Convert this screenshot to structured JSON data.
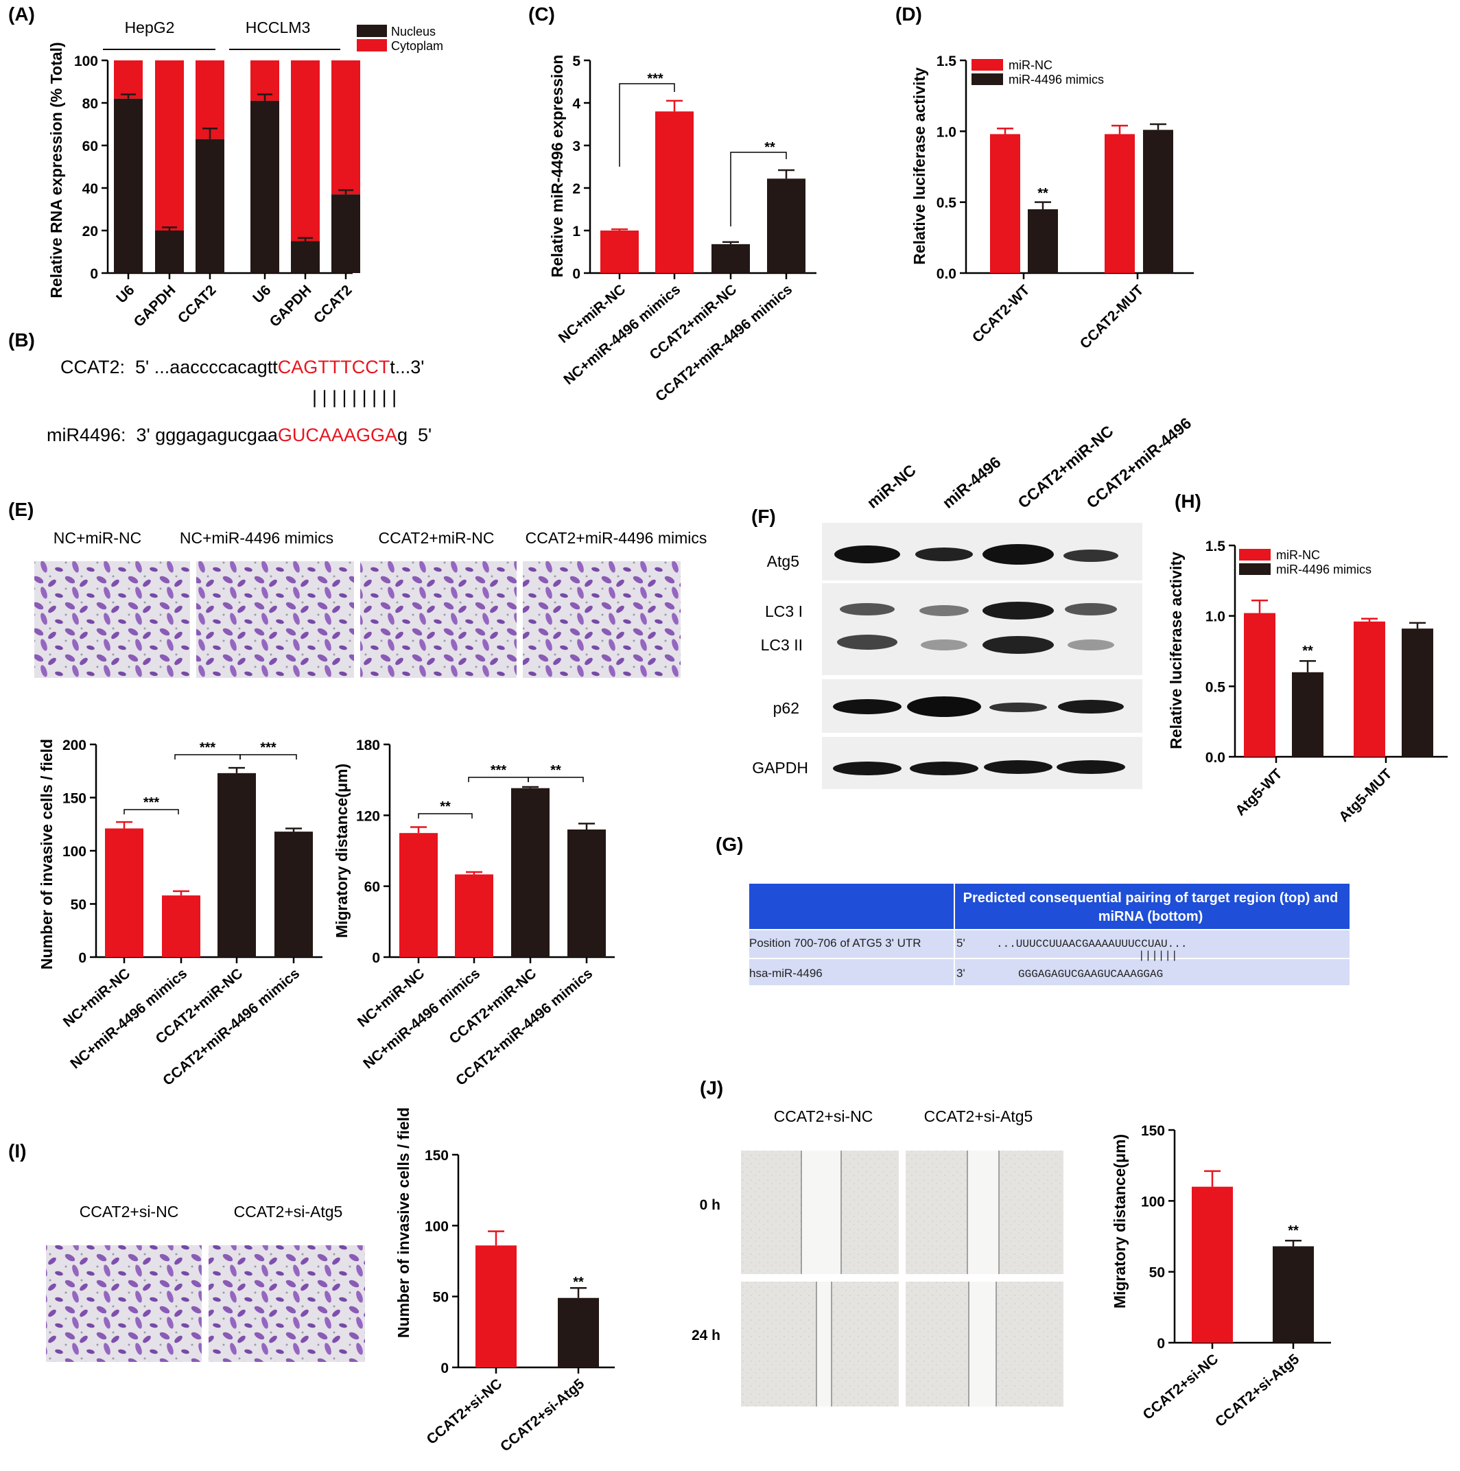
{
  "panels": {
    "A": {
      "label": "(A)",
      "groups": [
        "HepG2",
        "HCCLM3"
      ],
      "ylabel": "Relative RNA expression (% Total)",
      "legend": [
        "Nucleus",
        "Cytoplam"
      ],
      "yticks": [
        "0",
        "20",
        "40",
        "60",
        "80",
        "100"
      ],
      "xticks": [
        "U6",
        "GAPDH",
        "CCAT2",
        "U6",
        "GAPDH",
        "CCAT2"
      ]
    },
    "B": {
      "label": "(B)",
      "line1_prefix": "CCAT2:  5' ...aaccccacagtt",
      "line1_match": "CAGTTTCCT",
      "line1_suffix": "t...3'",
      "pairing": "| | | | | | | | |",
      "line2_prefix": "miR4496:  3' gggagagucgaa",
      "line2_match": "GUCAAAGGA",
      "line2_suffix": "g  5'"
    },
    "C": {
      "label": "(C)",
      "ylabel": "Relative miR-4496  expression",
      "yticks": [
        "0",
        "1",
        "2",
        "3",
        "4",
        "5"
      ],
      "xticks": [
        "NC+miR-NC",
        "NC+miR-4496 mimics",
        "CCAT2+miR-NC",
        "CCAT2+miR-4496 mimics"
      ],
      "sig": [
        "***",
        "**"
      ]
    },
    "D": {
      "label": "(D)",
      "ylabel": "Relative luciferase activity",
      "yticks": [
        "0.0",
        "0.5",
        "1.0",
        "1.5"
      ],
      "legend": [
        "miR-NC",
        "miR-4496 mimics"
      ],
      "xticks": [
        "CCAT2-WT",
        "CCAT2-MUT"
      ],
      "sig": [
        "**"
      ]
    },
    "E": {
      "label": "(E)",
      "image_titles": [
        "NC+miR-NC",
        "NC+miR-4496 mimics",
        "CCAT2+miR-NC",
        "CCAT2+miR-4496 mimics"
      ],
      "chart1_ylabel": "Number of invasive cells / field",
      "chart1_yticks": [
        "0",
        "50",
        "100",
        "150",
        "200"
      ],
      "chart2_ylabel": "Migratory distance(μm)",
      "chart2_yticks": [
        "0",
        "60",
        "120",
        "180"
      ],
      "xticks": [
        "NC+miR-NC",
        "NC+miR-4496 mimics",
        "CCAT2+miR-NC",
        "CCAT2+miR-4496 mimics"
      ],
      "sig1": [
        "***",
        "***",
        "***"
      ],
      "sig2": [
        "**",
        "***",
        "**"
      ]
    },
    "F": {
      "label": "(F)",
      "lanes": [
        "miR-NC",
        "miR-4496",
        "CCAT2+miR-NC",
        "CCAT2+miR-4496"
      ],
      "proteins": [
        "Atg5",
        "LC3 I",
        "LC3 II",
        "p62",
        "GAPDH"
      ]
    },
    "G": {
      "label": "(G)",
      "header": "Predicted consequential pairing of target region (top) and miRNA (bottom)",
      "row1_name": "Position 700-706 of ATG5 3' UTR",
      "row1_end": "5'",
      "row1_seq": "...UUUCCUUAACGAAAAUUUCCUAU...",
      "pairs": "||||||",
      "row2_name": "hsa-miR-4496",
      "row2_end": "3'",
      "row2_seq": "GGGAGAGUCGAAGUCAAAGGAG"
    },
    "H": {
      "label": "(H)",
      "ylabel": "Relative luciferase activity",
      "yticks": [
        "0.0",
        "0.5",
        "1.0",
        "1.5"
      ],
      "legend": [
        "miR-NC",
        "miR-4496 mimics"
      ],
      "xticks": [
        "Atg5-WT",
        "Atg5-MUT"
      ],
      "sig": [
        "**"
      ]
    },
    "I": {
      "label": "(I)",
      "image_titles": [
        "CCAT2+si-NC",
        "CCAT2+si-Atg5"
      ],
      "ylabel": "Number of invasive cells / field",
      "yticks": [
        "0",
        "50",
        "100",
        "150"
      ],
      "xticks": [
        "CCAT2+si-NC",
        "CCAT2+si-Atg5"
      ],
      "sig": [
        "**"
      ]
    },
    "J": {
      "label": "(J)",
      "image_titles": [
        "CCAT2+si-NC",
        "CCAT2+si-Atg5"
      ],
      "row_labels": [
        "0 h",
        "24 h"
      ],
      "ylabel": "Migratory distance(μm)",
      "yticks": [
        "0",
        "50",
        "100",
        "150"
      ],
      "xticks": [
        "CCAT2+si-NC",
        "CCAT2+si-Atg5"
      ],
      "sig": [
        "**"
      ]
    }
  },
  "colors": {
    "red": "#e8141e",
    "dark": "#231815"
  },
  "chart_data": [
    {
      "panel": "A",
      "type": "bar",
      "stacked": true,
      "categories": [
        "U6",
        "GAPDH",
        "CCAT2",
        "U6",
        "GAPDH",
        "CCAT2"
      ],
      "series": [
        {
          "name": "Nucleus",
          "values": [
            82,
            20,
            63,
            81,
            15,
            37
          ],
          "errors": [
            2,
            1.5,
            5,
            3,
            1.5,
            2
          ]
        },
        {
          "name": "Cytoplam",
          "values": [
            18,
            80,
            37,
            19,
            85,
            63
          ]
        }
      ],
      "ylim": [
        0,
        100
      ]
    },
    {
      "panel": "C",
      "type": "bar",
      "categories": [
        "NC+miR-NC",
        "NC+miR-4496 mimics",
        "CCAT2+miR-NC",
        "CCAT2+miR-4496 mimics"
      ],
      "values": [
        1.0,
        3.8,
        0.68,
        2.22
      ],
      "errors": [
        0.03,
        0.25,
        0.05,
        0.2
      ],
      "ylim": [
        0,
        5
      ]
    },
    {
      "panel": "D",
      "type": "bar",
      "categories": [
        "CCAT2-WT",
        "CCAT2-MUT"
      ],
      "series": [
        {
          "name": "miR-NC",
          "values": [
            0.98,
            0.98
          ],
          "errors": [
            0.04,
            0.06
          ]
        },
        {
          "name": "miR-4496 mimics",
          "values": [
            0.45,
            1.01
          ],
          "errors": [
            0.05,
            0.04
          ]
        }
      ],
      "ylim": [
        0,
        1.5
      ]
    },
    {
      "panel": "E1",
      "type": "bar",
      "categories": [
        "NC+miR-NC",
        "NC+miR-4496 mimics",
        "CCAT2+miR-NC",
        "CCAT2+miR-4496 mimics"
      ],
      "values": [
        121,
        58,
        173,
        118
      ],
      "errors": [
        6,
        4,
        5,
        3
      ],
      "ylim": [
        0,
        200
      ]
    },
    {
      "panel": "E2",
      "type": "bar",
      "categories": [
        "NC+miR-NC",
        "NC+miR-4496 mimics",
        "CCAT2+miR-NC",
        "CCAT2+miR-4496 mimics"
      ],
      "values": [
        105,
        70,
        143,
        108
      ],
      "errors": [
        5,
        2,
        1,
        5
      ],
      "ylim": [
        0,
        180
      ]
    },
    {
      "panel": "H",
      "type": "bar",
      "categories": [
        "Atg5-WT",
        "Atg5-MUT"
      ],
      "series": [
        {
          "name": "miR-NC",
          "values": [
            1.02,
            0.96
          ],
          "errors": [
            0.09,
            0.02
          ]
        },
        {
          "name": "miR-4496 mimics",
          "values": [
            0.6,
            0.91
          ],
          "errors": [
            0.08,
            0.04
          ]
        }
      ],
      "ylim": [
        0,
        1.5
      ]
    },
    {
      "panel": "I",
      "type": "bar",
      "categories": [
        "CCAT2+si-NC",
        "CCAT2+si-Atg5"
      ],
      "values": [
        86,
        49
      ],
      "errors": [
        10,
        7
      ],
      "ylim": [
        0,
        150
      ]
    },
    {
      "panel": "J",
      "type": "bar",
      "categories": [
        "CCAT2+si-NC",
        "CCAT2+si-Atg5"
      ],
      "values": [
        110,
        68
      ],
      "errors": [
        11,
        4
      ],
      "ylim": [
        0,
        150
      ]
    }
  ]
}
